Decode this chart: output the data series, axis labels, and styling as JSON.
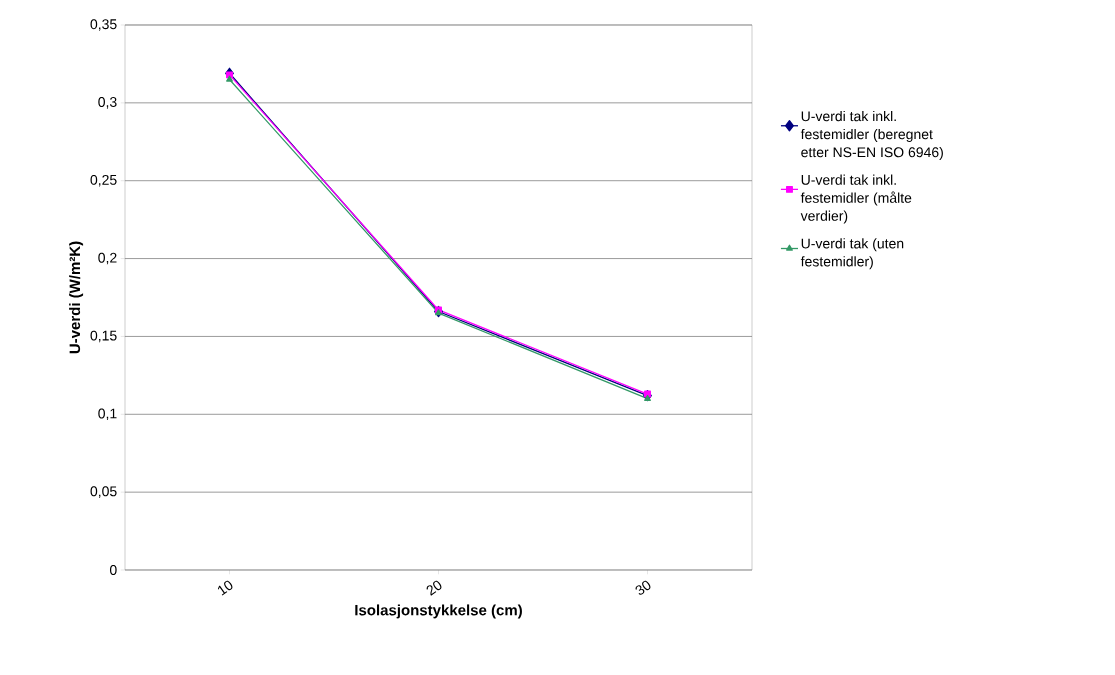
{
  "chart_data": {
    "type": "line",
    "xlabel": "Isolasjonstykkelse (cm)",
    "ylabel": "U-verdi (W/m²K)",
    "categories": [
      "10",
      "20",
      "30"
    ],
    "series": [
      {
        "name": "U-verdi tak inkl. festemidler (beregnet etter NS-EN ISO 6946)",
        "color": "#000080",
        "marker": "diamond",
        "values": [
          0.319,
          0.166,
          0.112
        ]
      },
      {
        "name": "U-verdi tak inkl. festemidler (målte verdier)",
        "color": "#ff00ff",
        "marker": "square",
        "values": [
          0.318,
          0.167,
          0.113
        ]
      },
      {
        "name": "U-verdi tak (uten festemidler)",
        "color": "#339966",
        "marker": "triangle",
        "values": [
          0.315,
          0.165,
          0.11
        ]
      }
    ],
    "ylim": [
      0,
      0.35
    ],
    "yticks": [
      {
        "value": 0,
        "label": "0"
      },
      {
        "value": 0.05,
        "label": "0,05"
      },
      {
        "value": 0.1,
        "label": "0,1"
      },
      {
        "value": 0.15,
        "label": "0,15"
      },
      {
        "value": 0.2,
        "label": "0,2"
      },
      {
        "value": 0.25,
        "label": "0,25"
      },
      {
        "value": 0.3,
        "label": "0,3"
      },
      {
        "value": 0.35,
        "label": "0,35"
      }
    ],
    "grid": "y",
    "legend": "right",
    "line_style": "solid"
  }
}
